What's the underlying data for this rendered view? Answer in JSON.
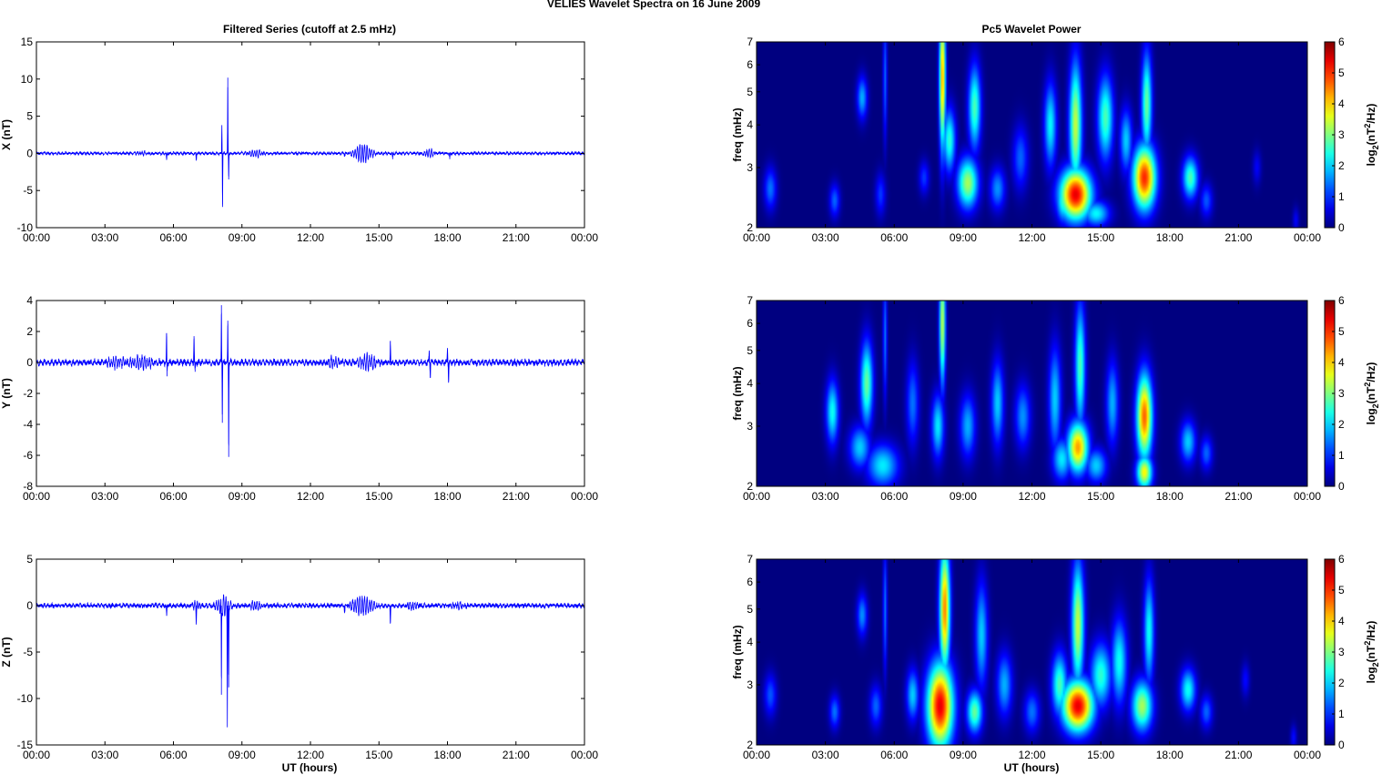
{
  "figure": {
    "title": "VELIES Wavelet Spectra on 16 June      2009",
    "left_title": "Filtered Series (cutoff at 2.5 mHz)",
    "right_title": "Pc5 Wavelet Power",
    "xlabel": "UT (hours)"
  },
  "chart_data": [
    {
      "type": "line",
      "panel": "X",
      "ylabel": "X (nT)",
      "x_ticks": [
        "00:00",
        "03:00",
        "06:00",
        "09:00",
        "12:00",
        "15:00",
        "18:00",
        "21:00",
        "00:00"
      ],
      "xlim": [
        0,
        24
      ],
      "ylim": [
        -10,
        15
      ],
      "y_ticks": [
        -10,
        -5,
        0,
        5,
        10,
        15
      ],
      "color": "#0000ff",
      "noise_amplitude": 0.15,
      "events": [
        {
          "t": 4.6,
          "a": 0.2,
          "w": 0.3
        },
        {
          "t": 5.7,
          "a": -0.9,
          "w": 0.02
        },
        {
          "t": 7.0,
          "a": -0.9,
          "w": 0.02
        },
        {
          "t": 8.12,
          "a": 3.8,
          "w": 0.015
        },
        {
          "t": 8.15,
          "a": -7.2,
          "w": 0.015
        },
        {
          "t": 8.38,
          "a": 10.2,
          "w": 0.015
        },
        {
          "t": 8.42,
          "a": -3.5,
          "w": 0.015
        },
        {
          "t": 9.6,
          "a": 0.5,
          "w": 0.3
        },
        {
          "t": 13.5,
          "a": -0.4,
          "w": 0.03
        },
        {
          "t": 14.3,
          "a": 1.2,
          "w": 0.4
        },
        {
          "t": 15.6,
          "a": -0.8,
          "w": 0.02
        },
        {
          "t": 17.2,
          "a": 0.6,
          "w": 0.2
        },
        {
          "t": 18.1,
          "a": -0.8,
          "w": 0.02
        }
      ]
    },
    {
      "type": "line",
      "panel": "Y",
      "ylabel": "Y (nT)",
      "x_ticks": [
        "00:00",
        "03:00",
        "06:00",
        "09:00",
        "12:00",
        "15:00",
        "18:00",
        "21:00",
        "00:00"
      ],
      "xlim": [
        0,
        24
      ],
      "ylim": [
        -8,
        4
      ],
      "y_ticks": [
        -8,
        -6,
        -4,
        -2,
        0,
        2,
        4
      ],
      "color": "#0000ff",
      "noise_amplitude": 0.15,
      "events": [
        {
          "t": 3.5,
          "a": 0.3,
          "w": 0.4
        },
        {
          "t": 4.6,
          "a": 0.4,
          "w": 0.5
        },
        {
          "t": 5.7,
          "a": 1.9,
          "w": 0.02
        },
        {
          "t": 5.72,
          "a": -0.9,
          "w": 0.02
        },
        {
          "t": 6.9,
          "a": 1.7,
          "w": 0.02
        },
        {
          "t": 6.95,
          "a": -0.6,
          "w": 0.02
        },
        {
          "t": 8.1,
          "a": 3.7,
          "w": 0.015
        },
        {
          "t": 8.14,
          "a": -3.9,
          "w": 0.015
        },
        {
          "t": 8.38,
          "a": 2.7,
          "w": 0.015
        },
        {
          "t": 8.42,
          "a": -6.1,
          "w": 0.015
        },
        {
          "t": 13.0,
          "a": 0.3,
          "w": 0.3
        },
        {
          "t": 14.5,
          "a": 0.5,
          "w": 0.4
        },
        {
          "t": 15.5,
          "a": 1.4,
          "w": 0.02
        },
        {
          "t": 17.2,
          "a": 0.7,
          "w": 0.02
        },
        {
          "t": 17.25,
          "a": -1.0,
          "w": 0.02
        },
        {
          "t": 18.0,
          "a": 0.9,
          "w": 0.02
        },
        {
          "t": 18.05,
          "a": -1.2,
          "w": 0.02
        }
      ]
    },
    {
      "type": "line",
      "panel": "Z",
      "ylabel": "Z (nT)",
      "x_ticks": [
        "00:00",
        "03:00",
        "06:00",
        "09:00",
        "12:00",
        "15:00",
        "18:00",
        "21:00",
        "00:00"
      ],
      "xlim": [
        0,
        24
      ],
      "ylim": [
        -15,
        5
      ],
      "y_ticks": [
        -15,
        -10,
        -5,
        0,
        5
      ],
      "color": "#0000ff",
      "noise_amplitude": 0.2,
      "events": [
        {
          "t": 5.7,
          "a": -1.1,
          "w": 0.02
        },
        {
          "t": 7.0,
          "a": -1.5,
          "w": 0.02
        },
        {
          "t": 7.0,
          "a": 0.4,
          "w": 0.2
        },
        {
          "t": 8.2,
          "a": 1.1,
          "w": 0.3
        },
        {
          "t": 8.1,
          "a": -9.6,
          "w": 0.015
        },
        {
          "t": 8.36,
          "a": -12.3,
          "w": 0.015
        },
        {
          "t": 8.42,
          "a": -8.8,
          "w": 0.015
        },
        {
          "t": 9.6,
          "a": 0.4,
          "w": 0.3
        },
        {
          "t": 13.5,
          "a": -0.8,
          "w": 0.02
        },
        {
          "t": 14.3,
          "a": 1.0,
          "w": 0.5
        },
        {
          "t": 15.5,
          "a": -1.9,
          "w": 0.02
        },
        {
          "t": 16.5,
          "a": 0.4,
          "w": 0.3
        },
        {
          "t": 18.5,
          "a": 0.3,
          "w": 0.3
        }
      ]
    },
    {
      "type": "heatmap",
      "panel": "X",
      "ylabel": "freq (mHz)",
      "colorbar_label": "log2(nT2/Hz)",
      "x_ticks": [
        "00:00",
        "03:00",
        "06:00",
        "09:00",
        "12:00",
        "15:00",
        "18:00",
        "21:00",
        "00:00"
      ],
      "y_ticks": [
        2,
        3,
        4,
        5,
        6,
        7
      ],
      "ylim": [
        2,
        7
      ],
      "y_scale": "log",
      "clim": [
        0,
        6
      ],
      "colorbar_ticks": [
        0,
        1,
        2,
        3,
        4,
        5,
        6
      ],
      "colormap": "jet",
      "blobs": [
        {
          "t": 0.6,
          "f": 2.6,
          "v": 1.6,
          "wt": 0.12,
          "wf": 0.1
        },
        {
          "t": 3.4,
          "f": 2.4,
          "v": 1.5,
          "wt": 0.1,
          "wf": 0.08
        },
        {
          "t": 4.6,
          "f": 4.8,
          "v": 2.0,
          "wt": 0.1,
          "wf": 0.1
        },
        {
          "t": 5.4,
          "f": 2.5,
          "v": 1.2,
          "wt": 0.1,
          "wf": 0.1
        },
        {
          "t": 5.6,
          "f": 5.5,
          "v": 1.5,
          "wt": 0.04,
          "wf": 0.3
        },
        {
          "t": 7.3,
          "f": 2.8,
          "v": 1.2,
          "wt": 0.1,
          "wf": 0.08
        },
        {
          "t": 8.1,
          "f": 5.5,
          "v": 4.8,
          "wt": 0.06,
          "wf": 0.35
        },
        {
          "t": 8.4,
          "f": 3.6,
          "v": 2.8,
          "wt": 0.12,
          "wf": 0.15
        },
        {
          "t": 9.2,
          "f": 2.7,
          "v": 3.6,
          "wt": 0.2,
          "wf": 0.12
        },
        {
          "t": 9.5,
          "f": 4.5,
          "v": 3.0,
          "wt": 0.12,
          "wf": 0.2
        },
        {
          "t": 10.5,
          "f": 2.6,
          "v": 1.8,
          "wt": 0.15,
          "wf": 0.1
        },
        {
          "t": 11.5,
          "f": 3.2,
          "v": 1.5,
          "wt": 0.15,
          "wf": 0.15
        },
        {
          "t": 12.8,
          "f": 4.0,
          "v": 2.5,
          "wt": 0.12,
          "wf": 0.2
        },
        {
          "t": 13.4,
          "f": 2.4,
          "v": 3.0,
          "wt": 0.15,
          "wf": 0.1
        },
        {
          "t": 13.9,
          "f": 2.5,
          "v": 6.0,
          "wt": 0.3,
          "wf": 0.12
        },
        {
          "t": 13.9,
          "f": 4.0,
          "v": 3.8,
          "wt": 0.12,
          "wf": 0.3
        },
        {
          "t": 14.8,
          "f": 2.2,
          "v": 2.5,
          "wt": 0.25,
          "wf": 0.06
        },
        {
          "t": 15.2,
          "f": 4.2,
          "v": 3.0,
          "wt": 0.15,
          "wf": 0.2
        },
        {
          "t": 16.1,
          "f": 3.6,
          "v": 2.2,
          "wt": 0.12,
          "wf": 0.15
        },
        {
          "t": 16.9,
          "f": 2.8,
          "v": 5.6,
          "wt": 0.22,
          "wf": 0.15
        },
        {
          "t": 17.0,
          "f": 4.6,
          "v": 3.2,
          "wt": 0.1,
          "wf": 0.25
        },
        {
          "t": 18.9,
          "f": 2.8,
          "v": 3.0,
          "wt": 0.15,
          "wf": 0.1
        },
        {
          "t": 19.6,
          "f": 2.4,
          "v": 1.4,
          "wt": 0.12,
          "wf": 0.08
        },
        {
          "t": 21.8,
          "f": 3.0,
          "v": 0.8,
          "wt": 0.08,
          "wf": 0.08
        },
        {
          "t": 23.5,
          "f": 2.1,
          "v": 0.8,
          "wt": 0.06,
          "wf": 0.06
        }
      ]
    },
    {
      "type": "heatmap",
      "panel": "Y",
      "ylabel": "freq (mHz)",
      "colorbar_label": "log2(nT2/Hz)",
      "x_ticks": [
        "00:00",
        "03:00",
        "06:00",
        "09:00",
        "12:00",
        "15:00",
        "18:00",
        "21:00",
        "00:00"
      ],
      "y_ticks": [
        2,
        3,
        4,
        5,
        6,
        7
      ],
      "ylim": [
        2,
        7
      ],
      "y_scale": "log",
      "clim": [
        0,
        6
      ],
      "colorbar_ticks": [
        0,
        1,
        2,
        3,
        4,
        5,
        6
      ],
      "colormap": "jet",
      "blobs": [
        {
          "t": 3.3,
          "f": 3.3,
          "v": 2.6,
          "wt": 0.12,
          "wf": 0.15
        },
        {
          "t": 4.5,
          "f": 2.6,
          "v": 2.2,
          "wt": 0.2,
          "wf": 0.1
        },
        {
          "t": 4.8,
          "f": 4.0,
          "v": 3.2,
          "wt": 0.12,
          "wf": 0.2
        },
        {
          "t": 5.5,
          "f": 2.3,
          "v": 2.4,
          "wt": 0.3,
          "wf": 0.1
        },
        {
          "t": 5.6,
          "f": 5.5,
          "v": 1.6,
          "wt": 0.04,
          "wf": 0.3
        },
        {
          "t": 6.8,
          "f": 3.5,
          "v": 1.6,
          "wt": 0.12,
          "wf": 0.2
        },
        {
          "t": 7.9,
          "f": 3.0,
          "v": 2.4,
          "wt": 0.12,
          "wf": 0.15
        },
        {
          "t": 8.1,
          "f": 6.0,
          "v": 3.8,
          "wt": 0.06,
          "wf": 0.3
        },
        {
          "t": 9.2,
          "f": 3.0,
          "v": 2.0,
          "wt": 0.15,
          "wf": 0.15
        },
        {
          "t": 10.5,
          "f": 3.5,
          "v": 2.2,
          "wt": 0.12,
          "wf": 0.2
        },
        {
          "t": 11.6,
          "f": 3.2,
          "v": 1.8,
          "wt": 0.15,
          "wf": 0.15
        },
        {
          "t": 13.0,
          "f": 3.6,
          "v": 2.2,
          "wt": 0.12,
          "wf": 0.25
        },
        {
          "t": 13.3,
          "f": 2.4,
          "v": 2.4,
          "wt": 0.18,
          "wf": 0.1
        },
        {
          "t": 14.0,
          "f": 2.6,
          "v": 4.8,
          "wt": 0.2,
          "wf": 0.12
        },
        {
          "t": 14.1,
          "f": 4.5,
          "v": 3.0,
          "wt": 0.1,
          "wf": 0.3
        },
        {
          "t": 14.8,
          "f": 2.3,
          "v": 2.2,
          "wt": 0.2,
          "wf": 0.08
        },
        {
          "t": 15.5,
          "f": 3.5,
          "v": 2.0,
          "wt": 0.12,
          "wf": 0.2
        },
        {
          "t": 16.9,
          "f": 3.2,
          "v": 5.2,
          "wt": 0.15,
          "wf": 0.2
        },
        {
          "t": 16.9,
          "f": 2.2,
          "v": 4.2,
          "wt": 0.15,
          "wf": 0.08
        },
        {
          "t": 18.8,
          "f": 2.7,
          "v": 2.2,
          "wt": 0.15,
          "wf": 0.1
        },
        {
          "t": 19.6,
          "f": 2.5,
          "v": 1.5,
          "wt": 0.12,
          "wf": 0.08
        }
      ]
    },
    {
      "type": "heatmap",
      "panel": "Z",
      "ylabel": "freq (mHz)",
      "colorbar_label": "log2(nT2/Hz)",
      "x_ticks": [
        "00:00",
        "03:00",
        "06:00",
        "09:00",
        "12:00",
        "15:00",
        "18:00",
        "21:00",
        "00:00"
      ],
      "y_ticks": [
        2,
        3,
        4,
        5,
        6,
        7
      ],
      "ylim": [
        2,
        7
      ],
      "y_scale": "log",
      "clim": [
        0,
        6
      ],
      "colorbar_ticks": [
        0,
        1,
        2,
        3,
        4,
        5,
        6
      ],
      "colormap": "jet",
      "blobs": [
        {
          "t": 0.6,
          "f": 2.8,
          "v": 1.4,
          "wt": 0.12,
          "wf": 0.1
        },
        {
          "t": 3.4,
          "f": 2.5,
          "v": 1.6,
          "wt": 0.1,
          "wf": 0.08
        },
        {
          "t": 4.6,
          "f": 4.8,
          "v": 1.8,
          "wt": 0.1,
          "wf": 0.1
        },
        {
          "t": 5.2,
          "f": 2.6,
          "v": 1.5,
          "wt": 0.12,
          "wf": 0.1
        },
        {
          "t": 5.6,
          "f": 5.0,
          "v": 1.6,
          "wt": 0.04,
          "wf": 0.3
        },
        {
          "t": 6.8,
          "f": 2.8,
          "v": 2.2,
          "wt": 0.12,
          "wf": 0.12
        },
        {
          "t": 8.0,
          "f": 2.6,
          "v": 6.0,
          "wt": 0.25,
          "wf": 0.2
        },
        {
          "t": 8.2,
          "f": 5.0,
          "v": 5.0,
          "wt": 0.1,
          "wf": 0.3
        },
        {
          "t": 9.5,
          "f": 2.5,
          "v": 3.2,
          "wt": 0.15,
          "wf": 0.1
        },
        {
          "t": 9.8,
          "f": 4.2,
          "v": 2.2,
          "wt": 0.12,
          "wf": 0.25
        },
        {
          "t": 10.8,
          "f": 3.0,
          "v": 2.0,
          "wt": 0.15,
          "wf": 0.15
        },
        {
          "t": 12.0,
          "f": 2.5,
          "v": 1.6,
          "wt": 0.15,
          "wf": 0.1
        },
        {
          "t": 13.2,
          "f": 3.0,
          "v": 3.0,
          "wt": 0.15,
          "wf": 0.15
        },
        {
          "t": 14.0,
          "f": 2.6,
          "v": 6.0,
          "wt": 0.3,
          "wf": 0.12
        },
        {
          "t": 14.0,
          "f": 4.5,
          "v": 3.8,
          "wt": 0.12,
          "wf": 0.3
        },
        {
          "t": 15.0,
          "f": 3.2,
          "v": 2.8,
          "wt": 0.2,
          "wf": 0.15
        },
        {
          "t": 15.8,
          "f": 3.5,
          "v": 2.6,
          "wt": 0.15,
          "wf": 0.2
        },
        {
          "t": 16.8,
          "f": 2.6,
          "v": 3.6,
          "wt": 0.2,
          "wf": 0.12
        },
        {
          "t": 17.1,
          "f": 4.3,
          "v": 2.6,
          "wt": 0.1,
          "wf": 0.25
        },
        {
          "t": 18.8,
          "f": 2.9,
          "v": 2.6,
          "wt": 0.15,
          "wf": 0.1
        },
        {
          "t": 19.6,
          "f": 2.5,
          "v": 1.5,
          "wt": 0.12,
          "wf": 0.08
        },
        {
          "t": 21.3,
          "f": 3.1,
          "v": 0.9,
          "wt": 0.08,
          "wf": 0.08
        },
        {
          "t": 23.4,
          "f": 2.1,
          "v": 0.9,
          "wt": 0.06,
          "wf": 0.06
        }
      ]
    }
  ]
}
